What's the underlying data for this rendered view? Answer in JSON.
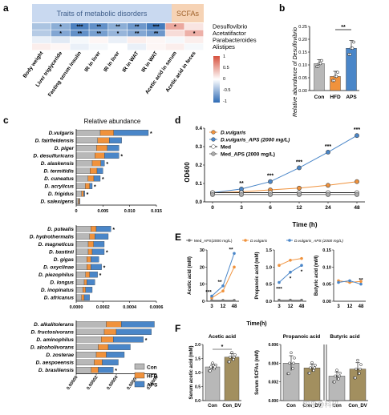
{
  "panels": {
    "a": {
      "letter": "a",
      "group1_title": "Traits of metabolic disorders",
      "group2_title": "SCFAs",
      "rows": [
        "Desulfovibrio",
        "Acetatifactor",
        "Parabacteroides",
        "Alistipes"
      ],
      "cols": [
        "Body weight",
        "Liver triglyceride",
        "Fasting serum insulin",
        "IR in liver",
        "IR in liver",
        "IR in WAT",
        "IR in WAT",
        "Acetic acid in serum",
        "Acetic acid in feces"
      ],
      "cells": [
        [
          "",
          "*",
          "***",
          "**",
          "**",
          "**",
          "***",
          "*",
          ""
        ],
        [
          "",
          "*",
          "**",
          "**",
          "*",
          "**",
          "**",
          "",
          "*"
        ],
        [
          "",
          "",
          "",
          "",
          "",
          "",
          "",
          "",
          ""
        ],
        [
          "",
          "",
          "",
          "",
          "",
          "",
          "",
          "",
          ""
        ]
      ],
      "values": [
        [
          -0.4,
          -0.55,
          -0.85,
          -0.75,
          -0.55,
          -0.7,
          -0.9,
          0.5,
          0.15
        ],
        [
          -0.35,
          -0.6,
          -0.75,
          -0.65,
          -0.5,
          -0.6,
          -0.7,
          0.2,
          0.45
        ],
        [
          -0.1,
          -0.15,
          -0.05,
          0.05,
          -0.1,
          0.1,
          0.05,
          -0.05,
          0.1
        ],
        [
          0.1,
          0.05,
          -0.1,
          -0.05,
          0.0,
          -0.1,
          0.05,
          0.1,
          -0.05
        ]
      ],
      "legend_ticks": [
        "1",
        "0.5",
        "0",
        "-0.5",
        "-1"
      ]
    },
    "b": {
      "letter": "b",
      "ylabel": "Relative abundance of Desulfovibrio",
      "ticks": [
        "0.00",
        "0.05",
        "0.10",
        "0.15",
        "0.20",
        "0.25"
      ],
      "sig": "**",
      "chart_data": {
        "type": "bar",
        "categories": [
          "Con",
          "HFD",
          "APS"
        ],
        "values": [
          0.105,
          0.055,
          0.165
        ],
        "errors": [
          0.015,
          0.02,
          0.03
        ],
        "ylim": [
          0,
          0.25
        ],
        "colors": [
          "#b8b8b8",
          "#f0923c",
          "#4a86c8"
        ]
      }
    },
    "c": {
      "letter": "c",
      "title": "Relative abundance",
      "legend": [
        "Con",
        "HFD",
        "APS"
      ],
      "colors": [
        "#b8b8b8",
        "#f0923c",
        "#4a86c8"
      ],
      "chart_data": [
        {
          "type": "bar",
          "species": [
            "D.vulgaris",
            "D. fairfieldensis",
            "D. piger",
            "D. desulfuricans",
            "D. alaskensis",
            "D. termitidis",
            "D. cuneatus",
            "D. acrylicus",
            "D. frigidus",
            "D. salexigens"
          ],
          "con": [
            0.0045,
            0.004,
            0.0038,
            0.0035,
            0.003,
            0.0026,
            0.0022,
            0.0017,
            0.001,
            0.0004
          ],
          "hfd": [
            0.0025,
            0.0022,
            0.002,
            0.0018,
            0.0016,
            0.0013,
            0.0011,
            0.0008,
            0.0004,
            0.0002
          ],
          "aps": [
            0.0065,
            0.0023,
            0.0022,
            0.0027,
            0.0007,
            0.0011,
            0.0012,
            0.0005,
            0.0002,
            0.0001
          ],
          "sig": [
            "*",
            "",
            "",
            "*",
            "*",
            "",
            "*",
            "*",
            "*",
            ""
          ],
          "ticks": [
            "0",
            "0.005",
            "0.010",
            "0.015"
          ],
          "xmax": 0.015
        },
        {
          "type": "bar",
          "species": [
            "D. putealis",
            "D. hydrothermalis",
            "D. magneticus",
            "D. bastinii",
            "D. gigas",
            "D. oxyclinae",
            "D. piezophilus",
            "D. longus",
            "D. inopinatus",
            "D. africanus"
          ],
          "con": [
            0.00011,
            0.0001,
            9e-05,
            9e-05,
            8e-05,
            8e-05,
            7e-05,
            6e-05,
            5e-05,
            4e-05
          ],
          "hfd": [
            4e-05,
            4e-05,
            4e-05,
            3e-05,
            3e-05,
            3e-05,
            3e-05,
            2e-05,
            2e-05,
            2e-05
          ],
          "aps": [
            0.00011,
            0.0001,
            8e-05,
            9e-05,
            6e-05,
            8e-05,
            6e-05,
            6e-05,
            5e-05,
            4e-05
          ],
          "sig": [
            "*",
            "",
            "",
            "*",
            "",
            "*",
            "*",
            "",
            "",
            ""
          ],
          "ticks": [
            "0.0000",
            "0.0002",
            "0.0004",
            "0.0006"
          ],
          "xmax": 0.0006
        },
        {
          "type": "bar",
          "species": [
            "D. alkalitolerans",
            "D. fructosivorans",
            "D. aminophilus",
            "D. alcoholivorans",
            "D. zosterae",
            "D. aespoeensis",
            "D. brasiliensis"
          ],
          "con": [
            3e-05,
            2.8e-05,
            2.5e-05,
            2.2e-05,
            2e-05,
            1.8e-05,
            1.5e-05
          ],
          "hfd": [
            1.5e-05,
            1.2e-05,
            1.2e-05,
            1e-05,
            1e-05,
            8e-06,
            7e-06
          ],
          "aps": [
            3.3e-05,
            3.5e-05,
            3e-05,
            2.2e-05,
            1.8e-05,
            1.6e-05,
            1.5e-05
          ],
          "sig": [
            "",
            "",
            "*",
            "",
            "",
            "",
            "*"
          ],
          "ticks": [
            "0.00000",
            "0.00002",
            "0.00004",
            "0.00006",
            "0.00008"
          ],
          "xmax": 8e-05
        }
      ]
    },
    "d": {
      "letter": "d",
      "ylabel": "OD600",
      "xlabel": "Time (h)",
      "legend": [
        "D.vulgaris",
        "D.vulgaris_APS (2000 mg/L)",
        "Med",
        "Med_APS (2000 mg/L)"
      ],
      "yticks": [
        "0.0",
        "0.1",
        "0.2",
        "0.3",
        "0.4"
      ],
      "chart_data": {
        "type": "line",
        "x": [
          "0",
          "3",
          "6",
          "12",
          "24",
          "48"
        ],
        "ylim": [
          0,
          0.4
        ],
        "series": [
          {
            "name": "D.vulgaris",
            "values": [
              0.05,
              0.055,
              0.065,
              0.075,
              0.09,
              0.11
            ],
            "color": "#f0923c",
            "fill": "#f0923c"
          },
          {
            "name": "D.vulgaris_APS (2000 mg/L)",
            "values": [
              0.05,
              0.07,
              0.11,
              0.185,
              0.27,
              0.36
            ],
            "color": "#4a86c8",
            "fill": "#4a86c8"
          },
          {
            "name": "Med",
            "values": [
              0.05,
              0.05,
              0.05,
              0.05,
              0.05,
              0.05
            ],
            "color": "#222222",
            "fill": "#ffffff"
          },
          {
            "name": "Med_APS (2000 mg/L)",
            "values": [
              0.04,
              0.04,
              0.04,
              0.04,
              0.04,
              0.04
            ],
            "color": "#777777",
            "fill": "#aaaaaa"
          }
        ],
        "sig": [
          "",
          "**",
          "***",
          "***",
          "***",
          "***"
        ]
      }
    },
    "e": {
      "letter": "E",
      "legend": [
        "Med_APS(2000 mg/L)",
        "D.vulgaris",
        "D.vulgaris_APS (2000 mg/L)"
      ],
      "xlabel": "Time(h)",
      "x": [
        "3",
        "12",
        "48"
      ],
      "subplots": [
        {
          "ylabel": "Acetic acid (mM)",
          "yticks": [
            "0",
            "10",
            "20",
            "30"
          ],
          "ylim": [
            0,
            30
          ],
          "series": [
            {
              "name": "Med_APS(2000 mg/L)",
              "values": [
                0.5,
                0.5,
                0.5
              ],
              "color": "#777777"
            },
            {
              "name": "D.vulgaris",
              "values": [
                2,
                6,
                20
              ],
              "color": "#f0923c"
            },
            {
              "name": "D.vulgaris_APS (2000 mg/L)",
              "values": [
                3,
                9,
                28
              ],
              "color": "#4a86c8"
            }
          ],
          "sig": [
            "***",
            "**",
            "**"
          ]
        },
        {
          "ylabel": "Propanoic acid (mM)",
          "yticks": [
            "0.0",
            "0.5",
            "1.0",
            "1.5"
          ],
          "ylim": [
            0,
            1.5
          ],
          "series": [
            {
              "name": "Med_APS(2000 mg/L)",
              "values": [
                0.03,
                0.03,
                0.03
              ],
              "color": "#777777"
            },
            {
              "name": "D.vulgaris",
              "values": [
                1.05,
                1.2,
                1.25
              ],
              "color": "#f0923c"
            },
            {
              "name": "D.vulgaris_APS (2000 mg/L)",
              "values": [
                0.55,
                0.85,
                1.05
              ],
              "color": "#4a86c8"
            }
          ],
          "sig": [
            "***",
            "*",
            "*"
          ]
        },
        {
          "ylabel": "Butyric acid (mM)",
          "yticks": [
            "0.00",
            "0.05",
            "0.10",
            "0.15"
          ],
          "ylim": [
            0,
            0.15
          ],
          "series": [
            {
              "name": "D.vulgaris",
              "values": [
                0.06,
                0.055,
                0.058
              ],
              "color": "#f0923c"
            },
            {
              "name": "D.vulgaris_APS (2000 mg/L)",
              "values": [
                0.055,
                0.06,
                0.05
              ],
              "color": "#4a86c8"
            }
          ],
          "sig": [
            "",
            "",
            "**"
          ]
        }
      ]
    },
    "f": {
      "letter": "F",
      "acetic": {
        "title": "Acetic acid",
        "ylabel": "Serum acetic acid (mM)",
        "yticks": [
          "0.0",
          "0.5",
          "1.0",
          "1.5",
          "2.0"
        ],
        "sig": "*",
        "chart_data": {
          "type": "bar",
          "categories": [
            "Con",
            "Con_DV"
          ],
          "values": [
            1.2,
            1.55
          ],
          "errors": [
            0.1,
            0.12
          ],
          "ylim": [
            0,
            2.0
          ],
          "colors": [
            "#b8b8b8",
            "#a28f5f"
          ]
        }
      },
      "scfa": {
        "ylabel": "Serum SCFAs (mM)",
        "titles": [
          "Propanoic acid",
          "Butyric acid"
        ],
        "prop_ticks": [
          "0.000",
          "0.002",
          "0.004",
          "0.006"
        ],
        "but_ticks": [
          "0.000",
          "0.002",
          "0.004",
          "0.006",
          "0.008"
        ],
        "chart_data": [
          {
            "type": "bar",
            "title": "Propanoic acid",
            "categories": [
              "Con",
              "Con_DV"
            ],
            "values": [
              0.004,
              0.0035
            ],
            "errors": [
              0.0008,
              0.0004
            ],
            "ylim": [
              0,
              0.006
            ],
            "colors": [
              "#b8b8b8",
              "#a28f5f"
            ]
          },
          {
            "type": "bar",
            "title": "Butyric acid",
            "categories": [
              "Con",
              "Con_DV"
            ],
            "values": [
              0.0035,
              0.0045
            ],
            "errors": [
              0.0006,
              0.0009
            ],
            "ylim": [
              0,
              0.008
            ],
            "colors": [
              "#b8b8b8",
              "#a28f5f"
            ]
          }
        ]
      }
    }
  },
  "watermark": "知乎@科研"
}
